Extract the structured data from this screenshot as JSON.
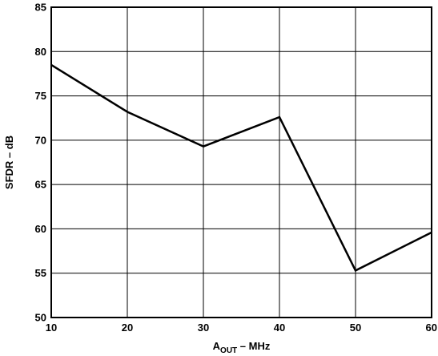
{
  "chart_data": {
    "type": "line",
    "title": "",
    "xlabel": {
      "main": "A",
      "subscript": "OUT",
      "rest": " – MHz"
    },
    "ylabel": "SFDR – dB",
    "xlim": [
      10,
      60
    ],
    "ylim": [
      50,
      85
    ],
    "xticks": [
      10,
      20,
      30,
      40,
      50,
      60
    ],
    "yticks": [
      50,
      55,
      60,
      65,
      70,
      75,
      80,
      85
    ],
    "grid": true,
    "series": [
      {
        "x": [
          10,
          20,
          30,
          40,
          50,
          60
        ],
        "y": [
          78.5,
          73.2,
          69.3,
          72.6,
          55.3,
          59.6
        ]
      }
    ],
    "colors": {
      "line": "#000000",
      "grid": "#000000",
      "background": "#ffffff"
    }
  }
}
